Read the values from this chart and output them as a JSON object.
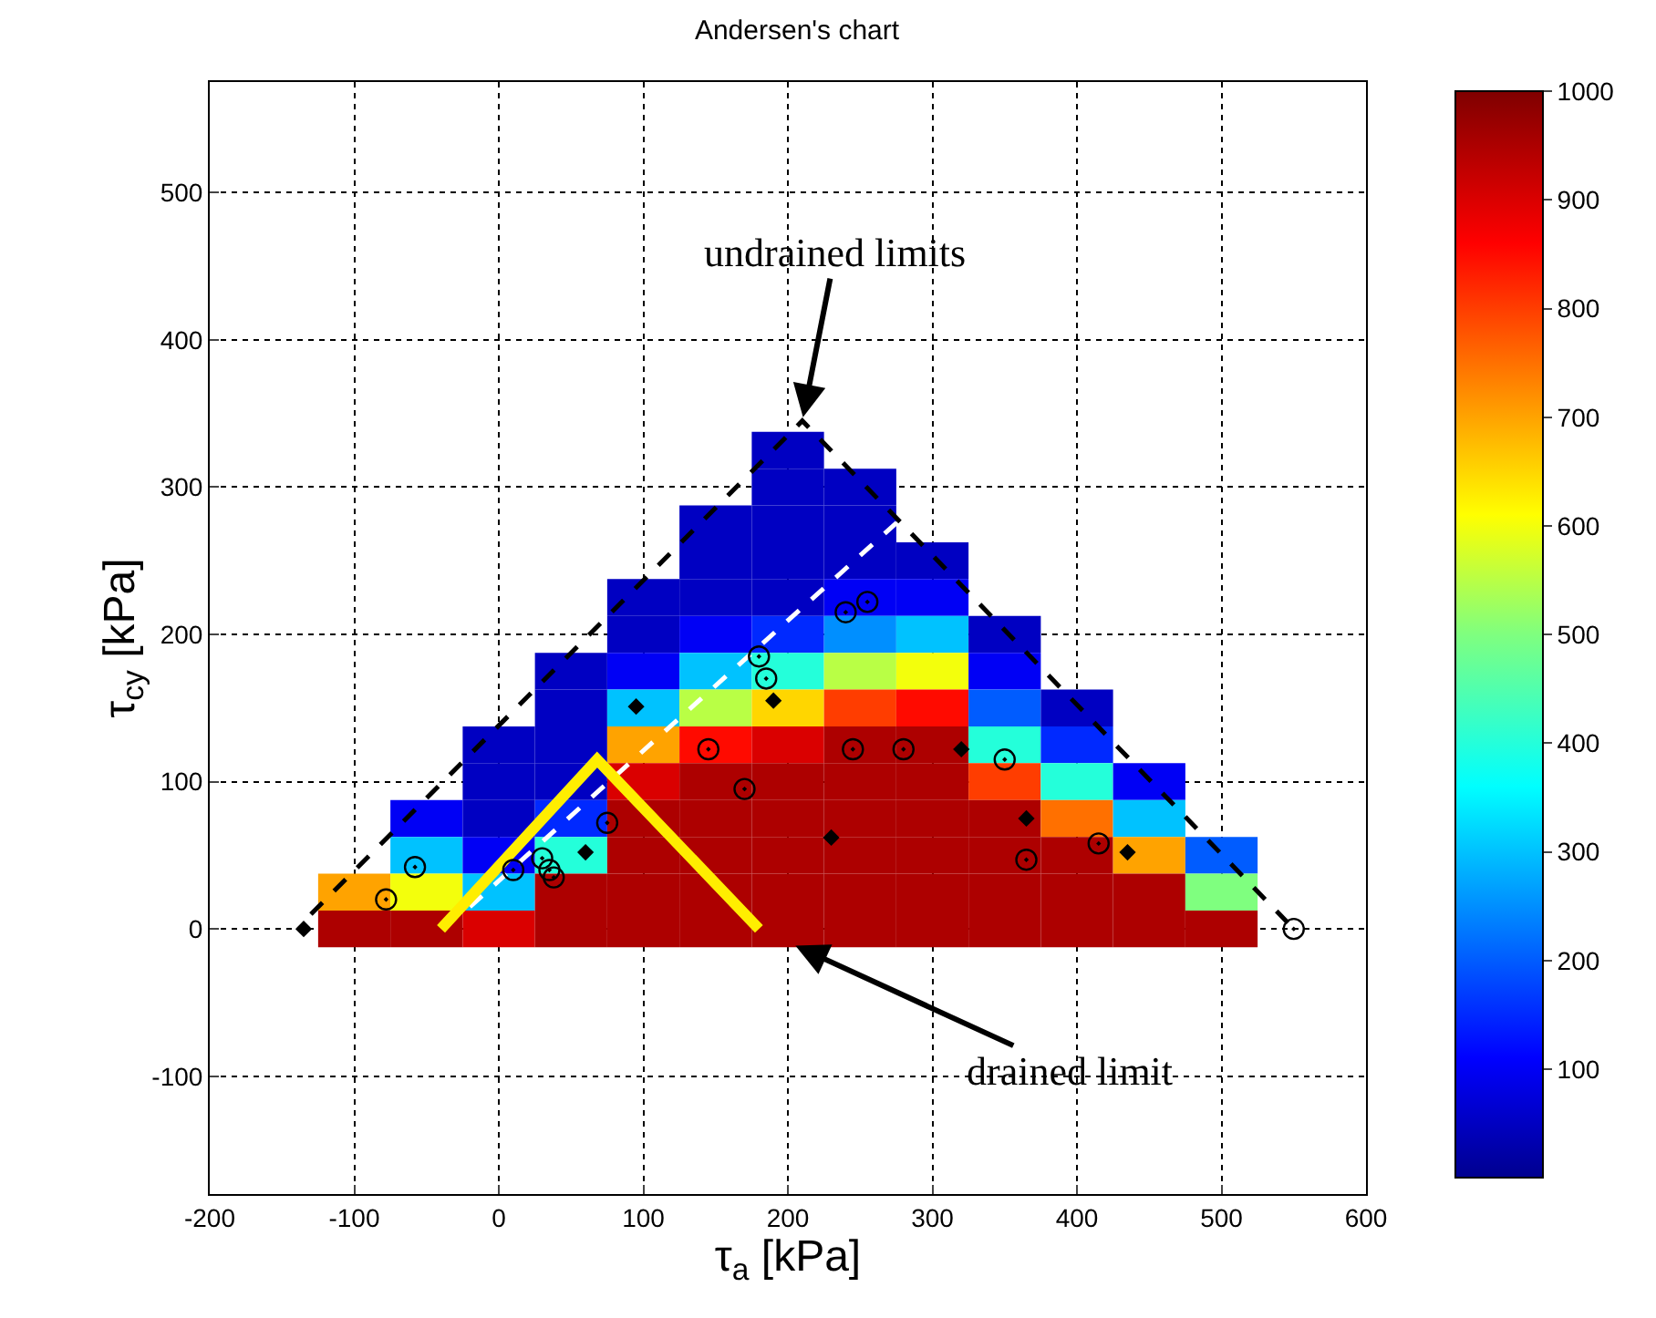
{
  "chart_data": {
    "type": "heatmap",
    "title": "Andersen's chart",
    "xlabel": "τ$_{a}$ [kPa]",
    "ylabel": "τ$_{cy}$ [kPa]",
    "x": [
      -100,
      -50,
      0,
      50,
      100,
      150,
      200,
      250,
      300,
      350,
      400,
      450,
      500
    ],
    "y": [
      325,
      300,
      275,
      250,
      225,
      200,
      175,
      150,
      125,
      100,
      75,
      50,
      25,
      0
    ],
    "cells": [
      [
        null,
        null,
        null,
        null,
        null,
        null,
        50,
        null,
        null,
        null,
        null,
        null,
        null
      ],
      [
        null,
        null,
        null,
        null,
        null,
        null,
        50,
        50,
        null,
        null,
        null,
        null,
        null
      ],
      [
        null,
        null,
        null,
        null,
        null,
        50,
        50,
        50,
        null,
        null,
        null,
        null,
        null
      ],
      [
        null,
        null,
        null,
        null,
        null,
        50,
        50,
        50,
        50,
        null,
        null,
        null,
        null
      ],
      [
        null,
        null,
        null,
        null,
        50,
        50,
        50,
        100,
        100,
        null,
        null,
        null,
        null
      ],
      [
        null,
        null,
        null,
        null,
        50,
        100,
        150,
        250,
        300,
        50,
        null,
        null,
        null
      ],
      [
        null,
        null,
        null,
        50,
        100,
        300,
        400,
        550,
        600,
        100,
        null,
        null,
        null
      ],
      [
        null,
        null,
        null,
        50,
        300,
        550,
        650,
        800,
        850,
        200,
        50,
        null,
        null
      ],
      [
        null,
        null,
        50,
        50,
        700,
        850,
        900,
        950,
        950,
        400,
        150,
        null,
        null
      ],
      [
        null,
        null,
        50,
        50,
        900,
        950,
        950,
        950,
        950,
        800,
        400,
        100,
        null
      ],
      [
        null,
        100,
        50,
        150,
        950,
        950,
        950,
        950,
        950,
        950,
        750,
        300,
        null
      ],
      [
        null,
        300,
        100,
        400,
        950,
        950,
        950,
        950,
        950,
        950,
        950,
        700,
        200
      ],
      [
        700,
        600,
        300,
        950,
        950,
        950,
        950,
        950,
        950,
        950,
        950,
        950,
        500
      ],
      [
        950,
        950,
        900,
        950,
        950,
        950,
        950,
        950,
        950,
        950,
        950,
        950,
        950
      ]
    ],
    "clim": [
      0,
      1000
    ],
    "cticks": [
      100,
      200,
      300,
      400,
      500,
      600,
      700,
      800,
      900,
      1000
    ],
    "xlim": [
      -200,
      600
    ],
    "xticks": [
      -200,
      -100,
      0,
      100,
      200,
      300,
      400,
      500,
      600
    ],
    "ylim": [
      -180,
      575
    ],
    "yticks": [
      -100,
      0,
      100,
      200,
      300,
      400,
      500
    ],
    "grid": true,
    "series": [
      {
        "type": "line",
        "color": "#000000",
        "line_style": "dashed",
        "marker": "none",
        "x": [
          -130,
          210,
          550
        ],
        "values": [
          10,
          345,
          0
        ]
      },
      {
        "type": "line",
        "color": "#ffffff",
        "line_style": "dashed",
        "marker": "none",
        "x": [
          -20,
          280
        ],
        "values": [
          15,
          280
        ]
      },
      {
        "type": "line",
        "color": "#ffee00",
        "line_style": "solid",
        "marker": "none",
        "x": [
          -40,
          68,
          180
        ],
        "values": [
          0,
          115,
          0
        ]
      },
      {
        "type": "scatter",
        "color": "#000000",
        "marker": "circle",
        "x": [
          -78,
          -58,
          10,
          30,
          35,
          38,
          75,
          170,
          180,
          185,
          240,
          255,
          145,
          245,
          280,
          350,
          365,
          415,
          550
        ],
        "values": [
          20,
          42,
          40,
          48,
          40,
          35,
          72,
          95,
          185,
          170,
          215,
          222,
          122,
          122,
          122,
          115,
          47,
          58,
          0
        ]
      },
      {
        "type": "scatter",
        "color": "#000000",
        "marker": "diamond",
        "x": [
          -135,
          95,
          190,
          320,
          230,
          435,
          365,
          60
        ],
        "values": [
          0,
          151,
          155,
          122,
          62,
          52,
          75,
          52
        ]
      }
    ],
    "annotations": [
      {
        "text": "undrained limits",
        "x": 210,
        "y": 345
      },
      {
        "text": "drained limit",
        "x": 180,
        "y": 0
      }
    ]
  }
}
